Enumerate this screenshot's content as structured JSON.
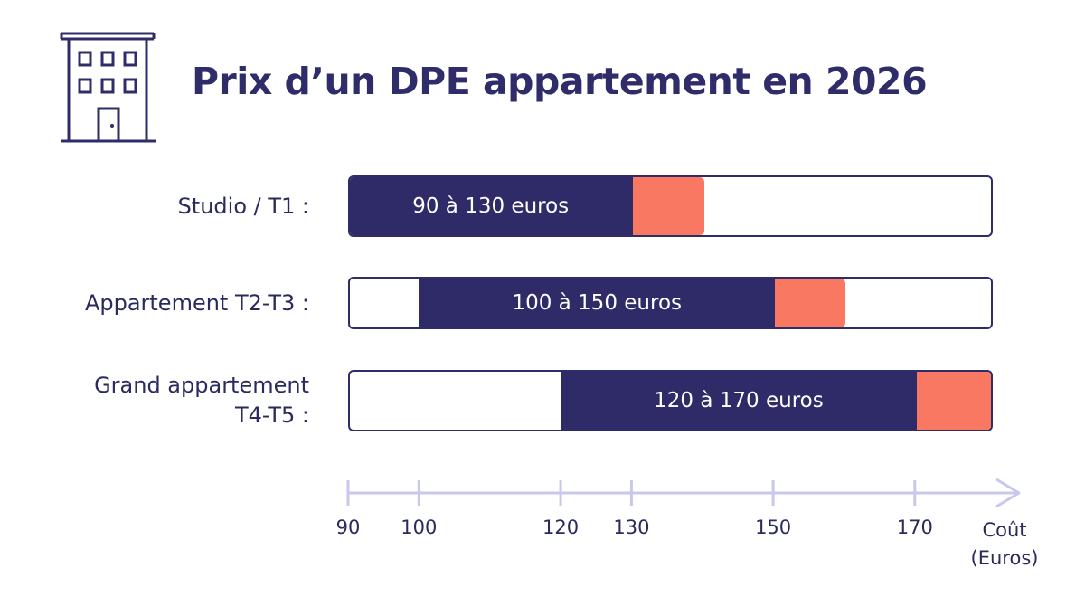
{
  "title": "Prix d’un DPE appartement en 2026",
  "colors": {
    "range": "#2f2b69",
    "extension": "#f97861",
    "track_border": "#2f2c6a",
    "axis": "#c9c7ec",
    "text": "#2b2a5e"
  },
  "icons": {
    "header": "apartment-building-icon",
    "axis_end": "arrow-right-icon"
  },
  "chart_data": {
    "type": "bar",
    "orientation": "horizontal",
    "categories": [
      "Studio / T1 :",
      "Appartement T2-T3 :",
      "Grand appartement T4-T5 :"
    ],
    "category_lines": [
      [
        "Studio / T1 :"
      ],
      [
        "Appartement T2-T3 :"
      ],
      [
        "Grand appartement",
        "T4-T5 :"
      ]
    ],
    "ranges": [
      {
        "low": 90,
        "high": 130,
        "ext_high": 140,
        "label": "90 à 130 euros"
      },
      {
        "low": 100,
        "high": 150,
        "ext_high": 160,
        "label": "100 à 150 euros"
      },
      {
        "low": 120,
        "high": 170,
        "ext_high": 181,
        "label": "120 à 170 euros"
      }
    ],
    "xlim": [
      90,
      181
    ],
    "xticks": [
      90,
      100,
      120,
      130,
      150,
      170
    ],
    "xlabel": "Coût (Euros)",
    "xlabel_lines": [
      "Coût",
      "(Euros)"
    ],
    "legend": "none",
    "grid": false
  }
}
